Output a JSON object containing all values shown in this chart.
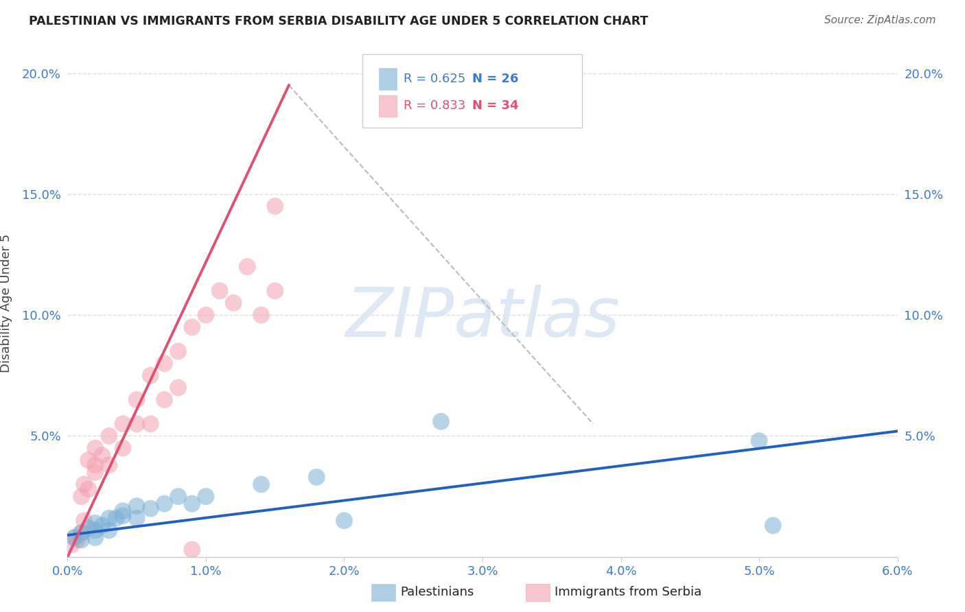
{
  "title": "PALESTINIAN VS IMMIGRANTS FROM SERBIA DISABILITY AGE UNDER 5 CORRELATION CHART",
  "source": "Source: ZipAtlas.com",
  "ylabel_label": "Disability Age Under 5",
  "xlim": [
    0.0,
    0.06
  ],
  "ylim": [
    0.0,
    0.21
  ],
  "xticks": [
    0.0,
    0.01,
    0.02,
    0.03,
    0.04,
    0.05,
    0.06
  ],
  "yticks": [
    0.0,
    0.05,
    0.1,
    0.15,
    0.2
  ],
  "ytick_labels": [
    "",
    "5.0%",
    "10.0%",
    "15.0%",
    "20.0%"
  ],
  "xtick_labels": [
    "0.0%",
    "1.0%",
    "2.0%",
    "3.0%",
    "4.0%",
    "5.0%",
    "6.0%"
  ],
  "grid_color": "#dddddd",
  "background_color": "#ffffff",
  "palestinians_color": "#7bafd4",
  "serbia_color": "#f4a0b0",
  "line_blue_color": "#2060c0",
  "line_pink_color": "#e05070",
  "watermark_color": "#dde8f5",
  "palestinians_x": [
    0.0005,
    0.001,
    0.001,
    0.0015,
    0.002,
    0.002,
    0.002,
    0.0025,
    0.003,
    0.003,
    0.0035,
    0.004,
    0.004,
    0.005,
    0.005,
    0.006,
    0.007,
    0.008,
    0.009,
    0.01,
    0.014,
    0.018,
    0.02,
    0.027,
    0.05,
    0.051
  ],
  "palestinians_y": [
    0.008,
    0.007,
    0.01,
    0.012,
    0.008,
    0.011,
    0.014,
    0.013,
    0.011,
    0.016,
    0.016,
    0.017,
    0.019,
    0.016,
    0.021,
    0.02,
    0.022,
    0.025,
    0.022,
    0.025,
    0.03,
    0.033,
    0.015,
    0.056,
    0.048,
    0.013
  ],
  "serbia_x": [
    0.0003,
    0.0005,
    0.0007,
    0.001,
    0.001,
    0.0012,
    0.0012,
    0.0015,
    0.0015,
    0.002,
    0.002,
    0.002,
    0.0025,
    0.003,
    0.003,
    0.004,
    0.004,
    0.005,
    0.005,
    0.006,
    0.006,
    0.007,
    0.007,
    0.008,
    0.008,
    0.009,
    0.01,
    0.011,
    0.012,
    0.013,
    0.014,
    0.015,
    0.009,
    0.015
  ],
  "serbia_y": [
    0.005,
    0.008,
    0.007,
    0.01,
    0.025,
    0.015,
    0.03,
    0.04,
    0.028,
    0.035,
    0.045,
    0.038,
    0.042,
    0.05,
    0.038,
    0.055,
    0.045,
    0.065,
    0.055,
    0.075,
    0.055,
    0.08,
    0.065,
    0.085,
    0.07,
    0.095,
    0.1,
    0.11,
    0.105,
    0.12,
    0.1,
    0.11,
    0.003,
    0.145
  ],
  "blue_line_x": [
    0.0,
    0.06
  ],
  "blue_line_y": [
    0.009,
    0.052
  ],
  "pink_line_x": [
    0.0,
    0.016
  ],
  "pink_line_y": [
    0.0,
    0.195
  ],
  "dashed_line_x": [
    0.016,
    0.038
  ],
  "dashed_line_y": [
    0.195,
    0.055
  ]
}
